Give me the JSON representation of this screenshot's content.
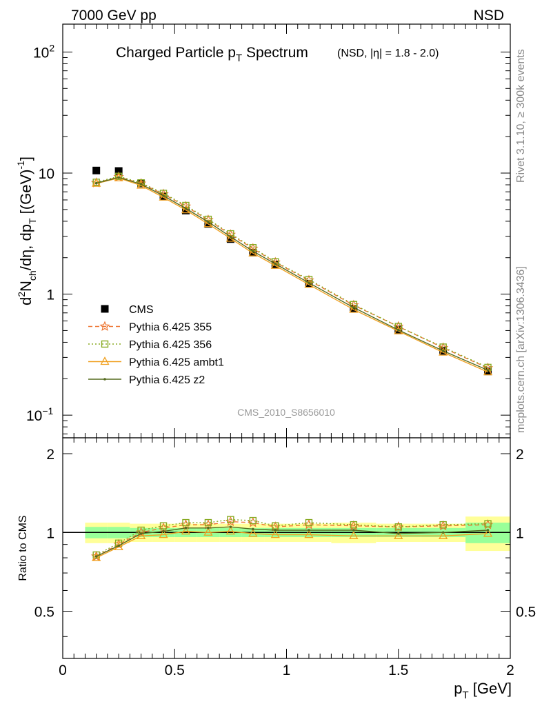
{
  "header": {
    "left": "7000 GeV pp",
    "right": "NSD"
  },
  "side_labels": {
    "rivet": "Rivet 3.1.10, ≥ 300k events",
    "mcplots": "mcplots.cern.ch [arXiv:1306.3436]"
  },
  "chart_data": [
    {
      "type": "scatter",
      "title_main": "Charged Particle p",
      "title_sub": "T",
      "title_rest": " Spectrum",
      "title_extra": "(NSD, |η| = 1.8 - 2.0)",
      "watermark": "CMS_2010_S8656010",
      "yscale": "log",
      "xlim": [
        0,
        2
      ],
      "ylim": [
        0.065,
        170
      ],
      "ylabel": "d²N_ch/dη, dp_T [(GeV)⁻¹]",
      "yticks": [
        {
          "value": 0.1,
          "label": "10",
          "sup": "−1"
        },
        {
          "value": 1,
          "label": "1",
          "sup": ""
        },
        {
          "value": 10,
          "label": "10",
          "sup": ""
        },
        {
          "value": 100,
          "label": "10",
          "sup": "2"
        }
      ],
      "legend_position": "left",
      "x": [
        0.15,
        0.25,
        0.35,
        0.45,
        0.55,
        0.65,
        0.75,
        0.85,
        0.95,
        1.1,
        1.3,
        1.5,
        1.7,
        1.9
      ],
      "series": [
        {
          "name": "CMS",
          "color": "#000000",
          "marker": "square",
          "values": [
            10.5,
            10.4,
            8.2,
            6.4,
            4.9,
            3.8,
            2.85,
            2.2,
            1.75,
            1.22,
            0.76,
            0.51,
            0.34,
            0.23
          ]
        },
        {
          "name": "Pythia 6.425 355",
          "color": "#ee7733",
          "marker": "star",
          "line": "dashed",
          "values": [
            8.3,
            9.3,
            8.2,
            6.7,
            5.3,
            4.1,
            3.1,
            2.38,
            1.83,
            1.3,
            0.81,
            0.54,
            0.36,
            0.245
          ]
        },
        {
          "name": "Pythia 6.425 356",
          "color": "#88aa22",
          "marker": "open-square",
          "line": "dotted",
          "values": [
            8.4,
            9.4,
            8.3,
            6.8,
            5.4,
            4.15,
            3.15,
            2.42,
            1.85,
            1.32,
            0.82,
            0.54,
            0.365,
            0.248
          ]
        },
        {
          "name": "Pythia 6.425 ambt1",
          "color": "#f0a020",
          "marker": "open-triangle",
          "line": "solid",
          "values": [
            8.2,
            9.1,
            7.9,
            6.3,
            4.95,
            3.8,
            2.88,
            2.18,
            1.72,
            1.2,
            0.745,
            0.495,
            0.33,
            0.227
          ]
        },
        {
          "name": "Pythia 6.425 z2",
          "color": "#556b1f",
          "marker": "dot",
          "line": "solid",
          "values": [
            8.25,
            9.2,
            8.1,
            6.5,
            5.1,
            3.95,
            2.98,
            2.26,
            1.78,
            1.24,
            0.775,
            0.505,
            0.34,
            0.235
          ]
        }
      ]
    },
    {
      "type": "scatter",
      "xlim": [
        0,
        2
      ],
      "ylim": [
        0.33,
        2.3
      ],
      "yscale": "log",
      "xlabel": "p_T [GeV]",
      "ylabel": "Ratio to CMS",
      "xticks": [
        0,
        0.5,
        1,
        1.5,
        2
      ],
      "xtick_labels": [
        "0",
        "0.5",
        "1",
        "1.5",
        "2"
      ],
      "yticks": [
        0.5,
        1,
        2
      ],
      "ytick_labels": [
        "0.5",
        "1",
        "2"
      ],
      "bands": {
        "x_edges": [
          0.1,
          0.2,
          0.3,
          0.4,
          0.5,
          0.6,
          0.7,
          0.8,
          0.9,
          1.0,
          1.2,
          1.4,
          1.6,
          1.8,
          2.0
        ],
        "green_half": [
          0.05,
          0.05,
          0.04,
          0.04,
          0.04,
          0.04,
          0.04,
          0.04,
          0.04,
          0.04,
          0.04,
          0.04,
          0.04,
          0.09
        ],
        "yellow_half": [
          0.09,
          0.09,
          0.08,
          0.08,
          0.08,
          0.08,
          0.08,
          0.08,
          0.08,
          0.08,
          0.09,
          0.08,
          0.08,
          0.15
        ]
      },
      "x": [
        0.15,
        0.25,
        0.35,
        0.45,
        0.55,
        0.65,
        0.75,
        0.85,
        0.95,
        1.1,
        1.3,
        1.5,
        1.7,
        1.9
      ],
      "series": [
        {
          "name": "Pythia 6.425 355",
          "color": "#ee7733",
          "marker": "star",
          "line": "dashed",
          "values": [
            0.81,
            0.9,
            1.0,
            1.04,
            1.07,
            1.07,
            1.1,
            1.09,
            1.05,
            1.07,
            1.06,
            1.05,
            1.06,
            1.07
          ]
        },
        {
          "name": "Pythia 6.425 356",
          "color": "#88aa22",
          "marker": "open-square",
          "line": "dotted",
          "values": [
            0.82,
            0.91,
            1.02,
            1.06,
            1.09,
            1.09,
            1.12,
            1.11,
            1.06,
            1.09,
            1.07,
            1.05,
            1.07,
            1.08
          ]
        },
        {
          "name": "Pythia 6.425 ambt1",
          "color": "#f0a020",
          "marker": "open-triangle",
          "line": "solid",
          "values": [
            0.8,
            0.88,
            0.97,
            0.98,
            1.01,
            1.0,
            1.01,
            0.99,
            0.98,
            0.98,
            0.97,
            0.97,
            0.97,
            0.99
          ]
        },
        {
          "name": "Pythia 6.425 z2",
          "color": "#556b1f",
          "marker": "dot",
          "line": "solid",
          "values": [
            0.81,
            0.89,
            0.99,
            1.01,
            1.04,
            1.04,
            1.05,
            1.03,
            1.02,
            1.02,
            1.02,
            0.99,
            1.0,
            1.02
          ]
        }
      ]
    }
  ]
}
